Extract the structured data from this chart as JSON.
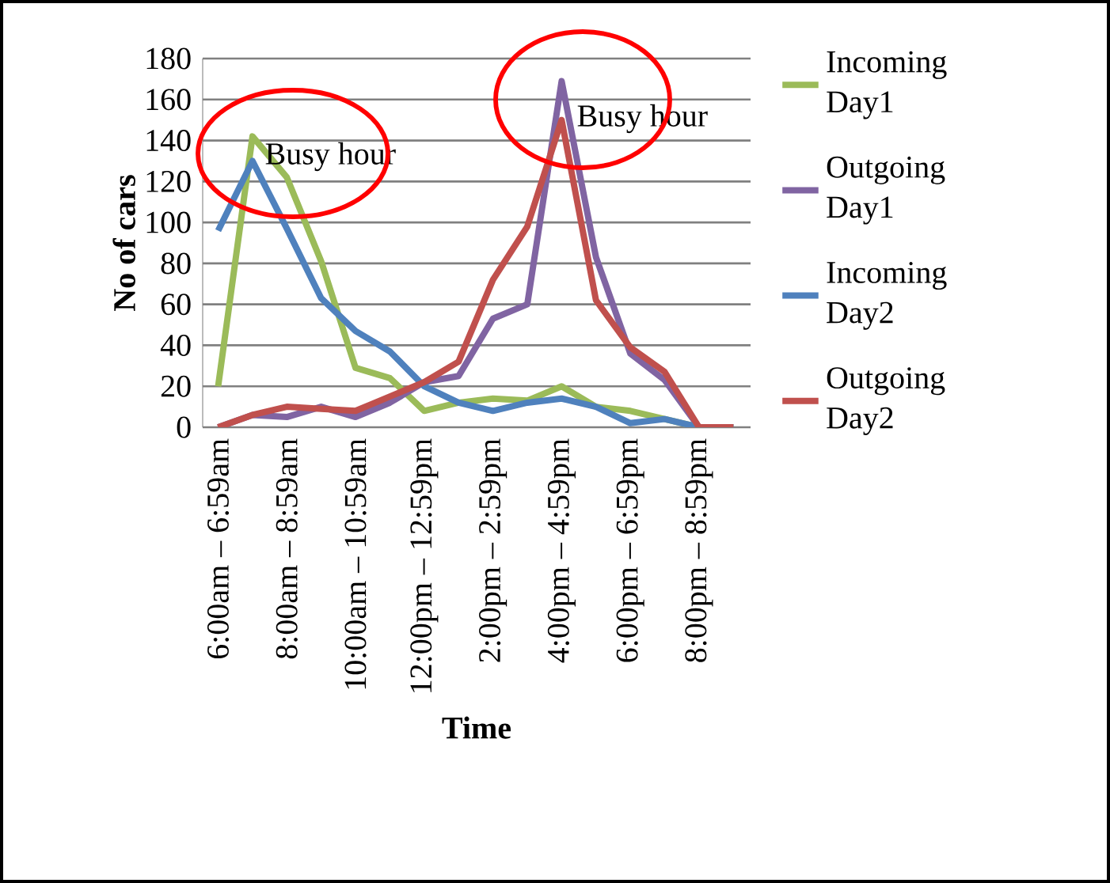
{
  "chart_data": {
    "type": "line",
    "xlabel": "Time",
    "ylabel": "No of cars",
    "categories": [
      "6:00am – 6:59am",
      null,
      "8:00am – 8:59am",
      null,
      "10:00am – 10:59am",
      null,
      "12:00pm – 12:59pm",
      null,
      "2:00pm – 2:59pm",
      null,
      "4:00pm – 4:59pm",
      null,
      "6:00pm – 6:59pm",
      null,
      "8:00pm – 8:59pm",
      null
    ],
    "series": [
      {
        "name": "Incoming Day1",
        "color": "#9bbb59",
        "values": [
          20,
          142,
          122,
          81,
          29,
          24,
          8,
          12,
          14,
          13,
          20,
          10,
          8,
          4,
          0,
          0
        ]
      },
      {
        "name": "Outgoing Day1",
        "color": "#8064a2",
        "values": [
          0,
          6,
          5,
          10,
          5,
          12,
          22,
          25,
          53,
          60,
          169,
          83,
          36,
          23,
          0,
          0
        ]
      },
      {
        "name": "Incoming Day2",
        "color": "#4f81bd",
        "values": [
          96,
          130,
          97,
          63,
          47,
          37,
          20,
          12,
          8,
          12,
          14,
          10,
          2,
          4,
          0,
          0
        ]
      },
      {
        "name": "Outgoing Day2",
        "color": "#c0504d",
        "values": [
          0,
          6,
          10,
          9,
          8,
          15,
          22,
          32,
          72,
          98,
          150,
          62,
          39,
          27,
          0,
          0
        ]
      }
    ],
    "ylim": [
      0,
      180
    ],
    "yticks": [
      0,
      20,
      40,
      60,
      80,
      100,
      120,
      140,
      160,
      180
    ],
    "grid": "y",
    "legend": "right",
    "marker": "none",
    "line_style": "solid",
    "annotations": [
      "Busy hour",
      "Busy hour"
    ]
  }
}
